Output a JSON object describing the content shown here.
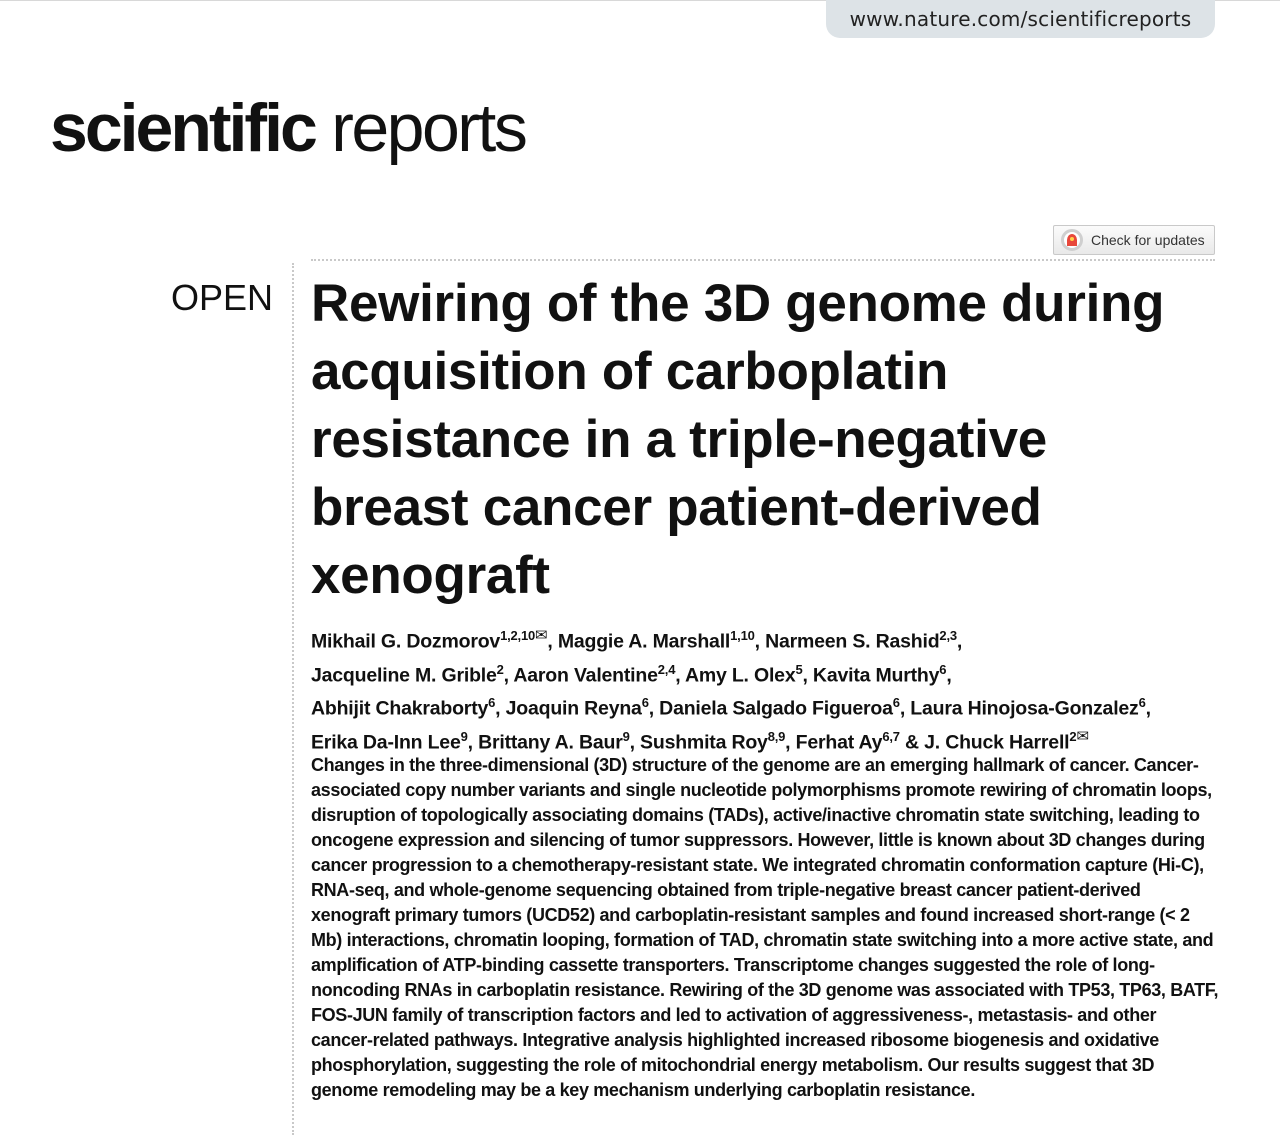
{
  "header": {
    "url": "www.nature.com/scientificreports",
    "logo_bold": "scientific",
    "logo_regular": "reports",
    "check_updates_label": "Check for updates"
  },
  "article": {
    "access_label": "OPEN",
    "title": "Rewiring of the 3D genome during acquisition of carboplatin resistance in a triple-negative breast cancer patient-derived xenograft",
    "author_lines": [
      {
        "text": "Mikhail G. Dozmorov",
        "sup": "1,2,10",
        "envelope": true
      },
      {
        "text": ", Maggie A. Marshall",
        "sup": "1,10"
      },
      {
        "text": ", Narmeen S. Rashid",
        "sup": "2,3"
      },
      {
        "text": ", ",
        "break": true
      },
      {
        "text": "Jacqueline M. Grible",
        "sup": "2"
      },
      {
        "text": ", Aaron Valentine",
        "sup": "2,4"
      },
      {
        "text": ", Amy L. Olex",
        "sup": "5"
      },
      {
        "text": ", Kavita Murthy",
        "sup": "6"
      },
      {
        "text": ", ",
        "break": true
      },
      {
        "text": "Abhijit Chakraborty",
        "sup": "6"
      },
      {
        "text": ", Joaquin Reyna",
        "sup": "6"
      },
      {
        "text": ", Daniela Salgado Figueroa",
        "sup": "6"
      },
      {
        "text": ", Laura Hinojosa-Gonzalez",
        "sup": "6"
      },
      {
        "text": ", ",
        "break": true
      },
      {
        "text": "Erika Da-Inn Lee",
        "sup": "9"
      },
      {
        "text": ", Brittany A. Baur",
        "sup": "9"
      },
      {
        "text": ", Sushmita Roy",
        "sup": "8,9"
      },
      {
        "text": ", Ferhat Ay",
        "sup": "6,7"
      },
      {
        "text": " & J. Chuck Harrell",
        "sup": "2",
        "envelope": true
      }
    ],
    "envelope_glyph": "✉",
    "abstract": "Changes in the three-dimensional (3D) structure of the genome are an emerging hallmark of cancer. Cancer-associated copy number variants and single nucleotide polymorphisms promote rewiring of chromatin loops, disruption of topologically associating domains (TADs), active/inactive chromatin state switching, leading to oncogene expression and silencing of tumor suppressors. However, little is known about 3D changes during cancer progression to a chemotherapy-resistant state. We integrated chromatin conformation capture (Hi-C), RNA-seq, and whole-genome sequencing obtained from triple-negative breast cancer patient-derived xenograft primary tumors (UCD52) and carboplatin-resistant samples and found increased short-range (< 2 Mb) interactions, chromatin looping, formation of TAD, chromatin state switching into a more active state, and amplification of ATP-binding cassette transporters. Transcriptome changes suggested the role of long-noncoding RNAs in carboplatin resistance. Rewiring of the 3D genome was associated with TP53, TP63, BATF, FOS-JUN family of transcription factors and led to activation of aggressiveness-, metastasis- and other cancer-related pathways. Integrative analysis highlighted increased ribosome biogenesis and oxidative phosphorylation, suggesting the role of mitochondrial energy metabolism. Our results suggest that 3D genome remodeling may be a key mechanism underlying carboplatin resistance."
  }
}
